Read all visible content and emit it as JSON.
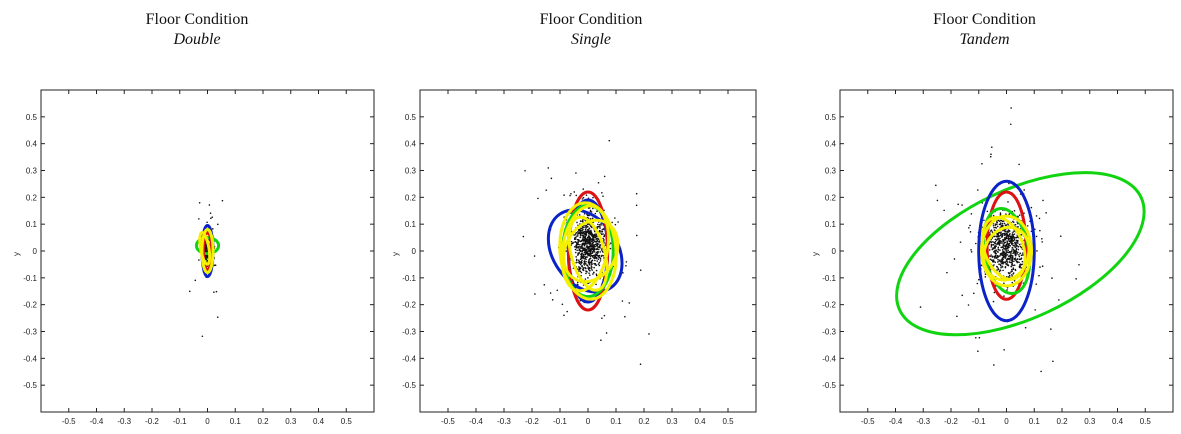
{
  "chart_data": [
    {
      "type": "scatter",
      "title": "Floor Condition",
      "subtitle": "Double",
      "xlabel": "",
      "ylabel": "y",
      "xlim": [
        -0.6,
        0.6
      ],
      "ylim": [
        -0.6,
        0.6
      ],
      "xticks": [
        "-0.5",
        "-0.4",
        "-0.3",
        "-0.2",
        "-0.1",
        "0",
        "0.1",
        "0.2",
        "0.3",
        "0.4",
        "0.5"
      ],
      "yticks": [
        "0.5",
        "0.4",
        "0.3",
        "0.2",
        "0.1",
        "0",
        "-0.1",
        "-0.2",
        "-0.3",
        "-0.4",
        "-0.5"
      ],
      "grid": false,
      "ellipses": [
        {
          "color": "#0a22c8",
          "cx": 0.0,
          "cy": 0.0,
          "rx": 0.02,
          "ry": 0.095,
          "angle": 0
        },
        {
          "color": "#11d411",
          "cx": 0.0,
          "cy": 0.02,
          "rx": 0.04,
          "ry": 0.03,
          "angle": 0
        },
        {
          "color": "#dd1111",
          "cx": 0.0,
          "cy": 0.0,
          "rx": 0.015,
          "ry": 0.07,
          "angle": 0
        },
        {
          "color": "#f5f000",
          "cx": 0.0,
          "cy": 0.0,
          "rx": 0.02,
          "ry": 0.08,
          "angle": 0
        },
        {
          "color": "#f5f000",
          "cx": -0.01,
          "cy": 0.01,
          "rx": 0.015,
          "ry": 0.06,
          "angle": 10
        }
      ],
      "cloud": {
        "cx": 0.0,
        "cy": 0.0,
        "sx": 0.008,
        "sy": 0.035
      }
    },
    {
      "type": "scatter",
      "title": "Floor Condition",
      "subtitle": "Single",
      "xlabel": "",
      "ylabel": "y",
      "xlim": [
        -0.6,
        0.6
      ],
      "ylim": [
        -0.6,
        0.6
      ],
      "xticks": [
        "-0.5",
        "-0.4",
        "-0.3",
        "-0.2",
        "-0.1",
        "0",
        "0.1",
        "0.2",
        "0.3",
        "0.4",
        "0.5"
      ],
      "yticks": [
        "0.5",
        "0.4",
        "0.3",
        "0.2",
        "0.1",
        "0",
        "-0.1",
        "-0.2",
        "-0.3",
        "-0.4",
        "-0.5"
      ],
      "grid": false,
      "ellipses": [
        {
          "color": "#0a22c8",
          "cx": -0.01,
          "cy": 0.0,
          "rx": 0.16,
          "ry": 0.12,
          "angle": -55
        },
        {
          "color": "#0a22c8",
          "cx": 0.0,
          "cy": 0.0,
          "rx": 0.07,
          "ry": 0.19,
          "angle": 0
        },
        {
          "color": "#dd1111",
          "cx": 0.0,
          "cy": 0.0,
          "rx": 0.07,
          "ry": 0.22,
          "angle": 0
        },
        {
          "color": "#11d411",
          "cx": 0.0,
          "cy": 0.0,
          "rx": 0.09,
          "ry": 0.17,
          "angle": 0
        },
        {
          "color": "#f5f000",
          "cx": 0.0,
          "cy": 0.0,
          "rx": 0.1,
          "ry": 0.18,
          "angle": 5
        },
        {
          "color": "#f5f000",
          "cx": -0.01,
          "cy": 0.01,
          "rx": 0.08,
          "ry": 0.16,
          "angle": -10
        },
        {
          "color": "#f5f000",
          "cx": 0.0,
          "cy": -0.01,
          "rx": 0.06,
          "ry": 0.14,
          "angle": 15
        },
        {
          "color": "#f5f000",
          "cx": 0.01,
          "cy": 0.0,
          "rx": 0.09,
          "ry": 0.12,
          "angle": -30
        }
      ],
      "cloud": {
        "cx": 0.0,
        "cy": 0.03,
        "sx": 0.03,
        "sy": 0.06
      }
    },
    {
      "type": "scatter",
      "title": "Floor Condition",
      "subtitle": "Tandem",
      "xlabel": "",
      "ylabel": "y",
      "xlim": [
        -0.6,
        0.6
      ],
      "ylim": [
        -0.6,
        0.6
      ],
      "xticks": [
        "-0.5",
        "-0.4",
        "-0.3",
        "-0.2",
        "-0.1",
        "0",
        "0.1",
        "0.2",
        "0.3",
        "0.4",
        "0.5"
      ],
      "yticks": [
        "0.5",
        "0.4",
        "0.3",
        "0.2",
        "0.1",
        "0",
        "-0.1",
        "-0.2",
        "-0.3",
        "-0.4",
        "-0.5"
      ],
      "grid": false,
      "ellipses": [
        {
          "color": "#11d411",
          "cx": 0.05,
          "cy": -0.01,
          "rx": 0.48,
          "ry": 0.24,
          "angle": 25
        },
        {
          "color": "#0a22c8",
          "cx": 0.0,
          "cy": 0.0,
          "rx": 0.1,
          "ry": 0.26,
          "angle": 0
        },
        {
          "color": "#dd1111",
          "cx": 0.0,
          "cy": 0.02,
          "rx": 0.07,
          "ry": 0.2,
          "angle": 0
        },
        {
          "color": "#11d411",
          "cx": 0.0,
          "cy": 0.0,
          "rx": 0.08,
          "ry": 0.16,
          "angle": 10
        },
        {
          "color": "#f5f000",
          "cx": 0.0,
          "cy": 0.0,
          "rx": 0.09,
          "ry": 0.13,
          "angle": 0
        },
        {
          "color": "#f5f000",
          "cx": -0.01,
          "cy": 0.01,
          "rx": 0.07,
          "ry": 0.12,
          "angle": 20
        },
        {
          "color": "#f5f000",
          "cx": 0.0,
          "cy": -0.01,
          "rx": 0.08,
          "ry": 0.1,
          "angle": -20
        }
      ],
      "cloud": {
        "cx": 0.0,
        "cy": 0.02,
        "sx": 0.04,
        "sy": 0.06
      }
    }
  ]
}
